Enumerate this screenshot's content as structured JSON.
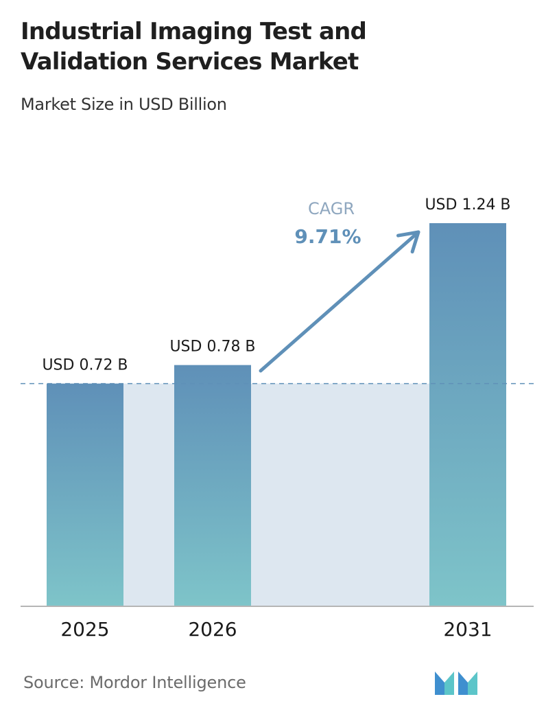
{
  "header": {
    "title_line1": "Industrial Imaging Test and",
    "title_line2": "Validation Services Market",
    "subtitle": "Market Size in USD Billion"
  },
  "cagr": {
    "label": "CAGR",
    "value": "9.71%"
  },
  "footer": {
    "source": "Source: Mordor Intelligence",
    "logo_icon": "mordor-intelligence-logo-icon"
  },
  "colors": {
    "bar_top": "#5f90b8",
    "bar_bottom": "#7ec4c9",
    "band": "#dde7f0",
    "arrow": "#5f90b8",
    "cagr_label": "#8fa7bf",
    "cagr_value": "#5f90b8",
    "dashed_line": "#5f90b8",
    "axis": "#b5b5b5"
  },
  "chart_data": {
    "type": "bar",
    "title": "Industrial Imaging Test and Validation Services Market",
    "subtitle": "Market Size in USD Billion",
    "categories": [
      "2025",
      "2026",
      "2031"
    ],
    "values": [
      0.72,
      0.78,
      1.24
    ],
    "value_labels": [
      "USD 0.72 B",
      "USD 0.78 B",
      "USD 1.24 B"
    ],
    "ylim": [
      0,
      1.24
    ],
    "grid": false,
    "reference_line": 0.72
  }
}
